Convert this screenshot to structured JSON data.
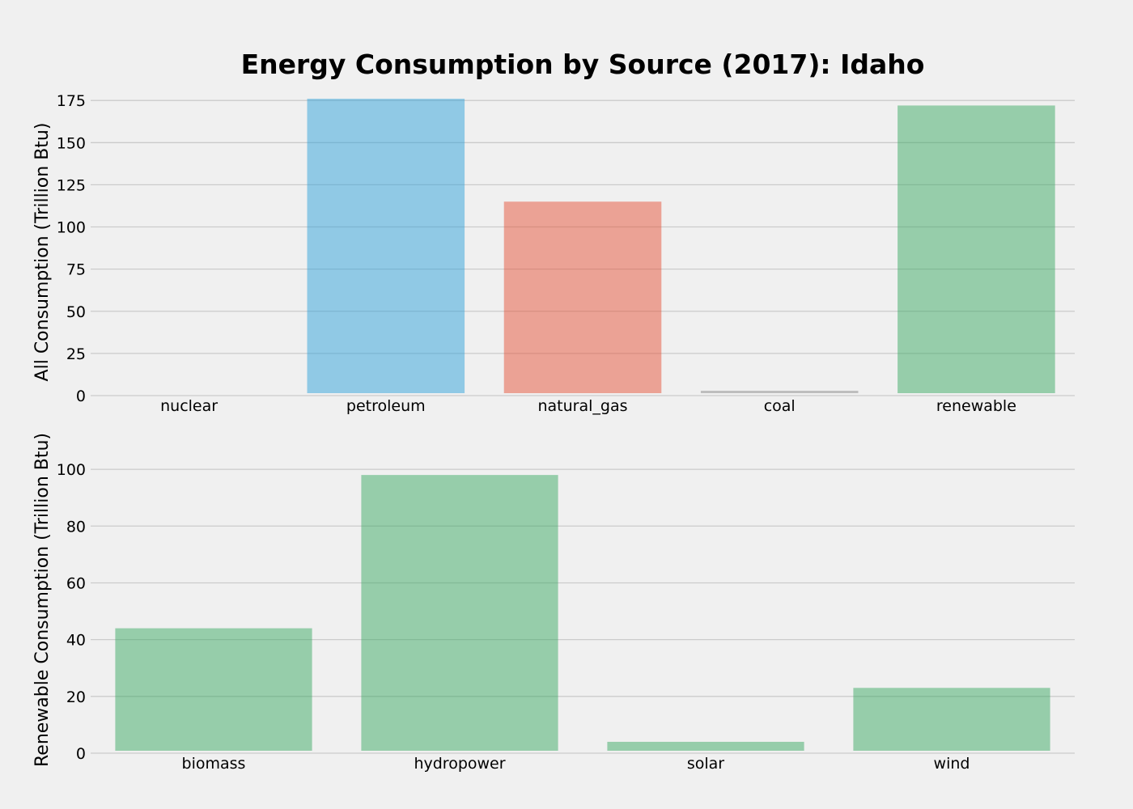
{
  "chart_data": {
    "title": "Energy Consumption by Source (2017): Idaho",
    "colors": {
      "background": "#f0f0f0",
      "grid": "#cbcbcb",
      "nuclear": "#e5ae38",
      "petroleum": "#30a2da",
      "natural_gas": "#fc4f30",
      "coal": "#8b8b8b",
      "renewable": "#6d904f",
      "renewable_bar": "#3caa64"
    },
    "charts": [
      {
        "type": "bar",
        "ylabel": "All Consumption (Trillion Btu)",
        "categories": [
          "nuclear",
          "petroleum",
          "natural_gas",
          "coal",
          "renewable"
        ],
        "values": [
          0,
          176,
          115,
          1,
          172
        ],
        "bar_colors": [
          "#e5ae38",
          "#30a2da",
          "#e5533a",
          "#8b8b8b",
          "#3caa64"
        ],
        "ylim": [
          0,
          177
        ],
        "yticks": [
          0,
          25,
          50,
          75,
          100,
          125,
          150,
          175
        ],
        "grid": true
      },
      {
        "type": "bar",
        "ylabel": "Renewable Consumption (Trillion Btu)",
        "categories": [
          "biomass",
          "hydropower",
          "solar",
          "wind"
        ],
        "values": [
          44,
          98,
          4,
          23
        ],
        "bar_colors": [
          "#3caa64",
          "#3caa64",
          "#3caa64",
          "#3caa64"
        ],
        "ylim": [
          0,
          112
        ],
        "yticks": [
          0,
          20,
          40,
          60,
          80,
          100
        ],
        "grid": true
      }
    ]
  }
}
